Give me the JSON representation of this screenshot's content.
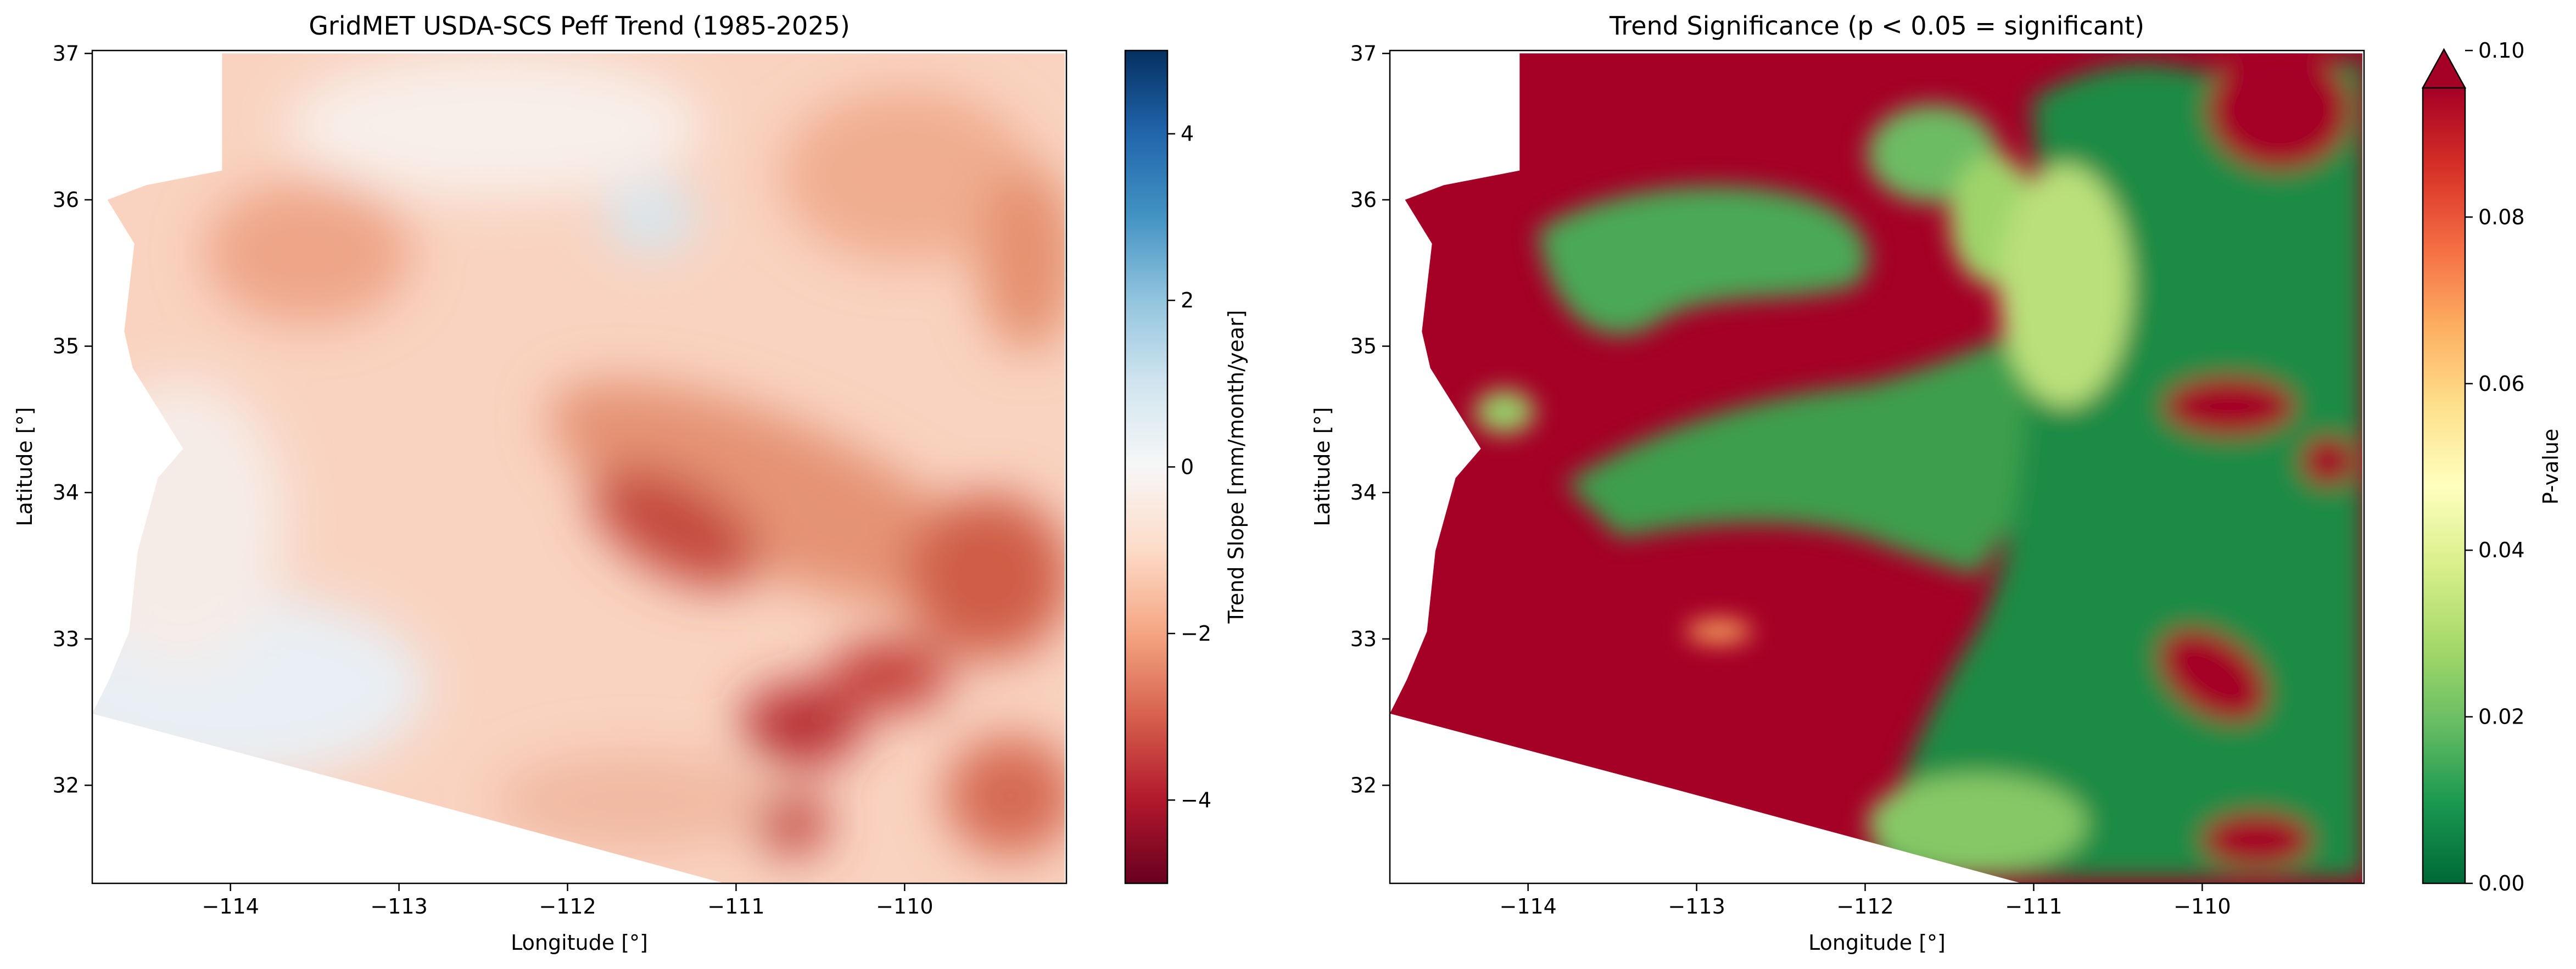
{
  "chart_data": [
    {
      "type": "heatmap",
      "title": "GridMET USDA-SCS Peff Trend (1985-2025)",
      "xlabel": "Longitude [°]",
      "ylabel": "Latitude [°]",
      "xlim": [
        -114.82,
        -109.04
      ],
      "ylim": [
        31.33,
        37.02
      ],
      "x_ticks": [
        -114,
        -113,
        -112,
        -111,
        -110
      ],
      "x_tick_labels": [
        "−114",
        "−113",
        "−112",
        "−111",
        "−110"
      ],
      "y_ticks": [
        32,
        33,
        34,
        35,
        36,
        37
      ],
      "y_tick_labels": [
        "32",
        "33",
        "34",
        "35",
        "36",
        "37"
      ],
      "colormap": "RdBu",
      "colormap_stops": [
        "#67001f",
        "#b2182b",
        "#d6604d",
        "#f4a582",
        "#fddbc7",
        "#f7f7f7",
        "#d1e5f0",
        "#92c5de",
        "#4393c3",
        "#2166ac",
        "#053061"
      ],
      "colorbar": {
        "label": "Trend Slope [mm/month/year]",
        "range": [
          -5,
          5
        ],
        "ticks": [
          -4,
          -2,
          0,
          2,
          4
        ],
        "tick_labels": [
          "−4",
          "−2",
          "0",
          "2",
          "4"
        ]
      },
      "grid": false,
      "field_description": "Predominantly negative slopes (−1 to −4.5) across Arizona; strongest declines in the central-southeast; near-zero to slightly positive values in the southwest and a small area near 35.8°N, 111.4°W."
    },
    {
      "type": "heatmap",
      "title": "Trend Significance (p < 0.05 = significant)",
      "xlabel": "Longitude [°]",
      "ylabel": "Latitude [°]",
      "xlim": [
        -114.82,
        -109.04
      ],
      "ylim": [
        31.33,
        37.02
      ],
      "x_ticks": [
        -114,
        -113,
        -112,
        -111,
        -110
      ],
      "x_tick_labels": [
        "−114",
        "−113",
        "−112",
        "−111",
        "−110"
      ],
      "y_ticks": [
        32,
        33,
        34,
        35,
        36,
        37
      ],
      "y_tick_labels": [
        "32",
        "33",
        "34",
        "35",
        "36",
        "37"
      ],
      "colormap": "RdYlGn_r",
      "colormap_stops": [
        "#006837",
        "#1a9850",
        "#66bd63",
        "#a6d96a",
        "#d9ef8b",
        "#ffffbf",
        "#fee08b",
        "#fdae61",
        "#f46d43",
        "#d73027",
        "#a50026"
      ],
      "colorbar": {
        "label": "P-value",
        "range": [
          0,
          0.1
        ],
        "extend": "max",
        "ticks": [
          0,
          0.02,
          0.04,
          0.06,
          0.08,
          0.1
        ],
        "tick_labels": [
          "0.00",
          "0.02",
          "0.04",
          "0.06",
          "0.08",
          "0.10"
        ]
      },
      "grid": false,
      "field_description": "Low p-values (significant) over the central mountains and eastern Arizona; high p-values (not significant) across the western deserts and far southwest."
    }
  ]
}
